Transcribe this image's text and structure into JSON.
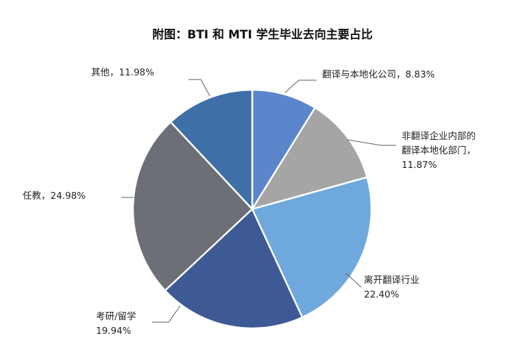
{
  "chart_data": {
    "type": "pie",
    "title": "附图：BTI 和 MTI 学生毕业去向主要占比",
    "slices": [
      {
        "name": "翻译与本地化公司",
        "value": 8.83,
        "label_lines": [
          "翻译与本地化公司，8.83%"
        ],
        "color": "#5B86CB"
      },
      {
        "name": "非翻译企业内部的翻译本地化部门",
        "value": 11.87,
        "label_lines": [
          "非翻译企业内部的",
          "翻译本地化部门，",
          "11.87%"
        ],
        "color": "#A5A5A5"
      },
      {
        "name": "离开翻译行业",
        "value": 22.4,
        "label_lines": [
          "离开翻译行业",
          "22.40%"
        ],
        "color": "#6FA8DC"
      },
      {
        "name": "考研/留学",
        "value": 19.94,
        "label_lines": [
          "考研/留学",
          "19.94%"
        ],
        "color": "#3D5A94"
      },
      {
        "name": "任教",
        "value": 24.98,
        "label_lines": [
          "任教，24.98%"
        ],
        "color": "#6D6F77"
      },
      {
        "name": "其他",
        "value": 11.98,
        "label_lines": [
          "其他，11.98%"
        ],
        "color": "#3F6FA8"
      }
    ]
  }
}
